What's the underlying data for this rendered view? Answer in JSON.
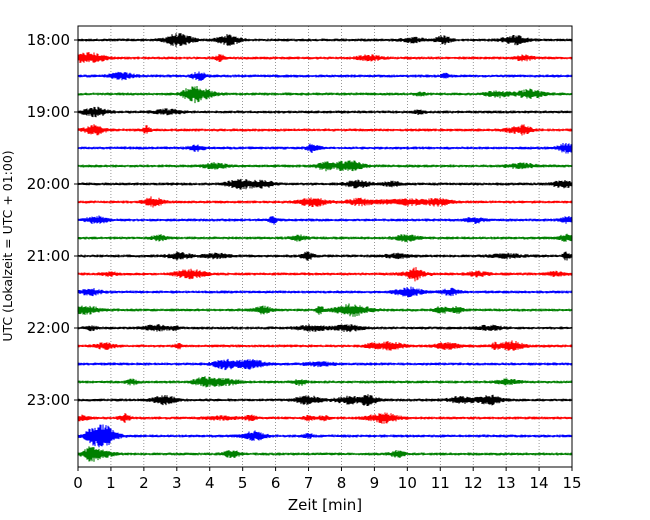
{
  "chart_data": {
    "type": "line",
    "title": "",
    "xlabel": "Zeit  [min]",
    "ylabel": "UTC (Lokalzeit = UTC + 01:00)",
    "xlim": [
      0,
      15
    ],
    "x_ticks": [
      0,
      1,
      2,
      3,
      4,
      5,
      6,
      7,
      8,
      9,
      10,
      11,
      12,
      13,
      14,
      15
    ],
    "x_tick_labels": [
      "0",
      "1",
      "2",
      "3",
      "4",
      "5",
      "6",
      "7",
      "8",
      "9",
      "10",
      "11",
      "12",
      "13",
      "14",
      "15"
    ],
    "y_tick_labels": [
      "18:00",
      "19:00",
      "20:00",
      "21:00",
      "22:00",
      "23:00"
    ],
    "trace_interval_min": 15,
    "start_time": "18:00",
    "vertical_grid": true,
    "legend": "none",
    "trace_colors": [
      "#000000",
      "#ff0000",
      "#0000ff",
      "#008000"
    ],
    "traces": [
      {
        "start": "18:00",
        "color": "#000000"
      },
      {
        "start": "18:15",
        "color": "#ff0000"
      },
      {
        "start": "18:30",
        "color": "#0000ff"
      },
      {
        "start": "18:45",
        "color": "#008000"
      },
      {
        "start": "19:00",
        "color": "#000000"
      },
      {
        "start": "19:15",
        "color": "#ff0000"
      },
      {
        "start": "19:30",
        "color": "#0000ff"
      },
      {
        "start": "19:45",
        "color": "#008000"
      },
      {
        "start": "20:00",
        "color": "#000000"
      },
      {
        "start": "20:15",
        "color": "#ff0000"
      },
      {
        "start": "20:30",
        "color": "#0000ff"
      },
      {
        "start": "20:45",
        "color": "#008000"
      },
      {
        "start": "21:00",
        "color": "#000000"
      },
      {
        "start": "21:15",
        "color": "#ff0000"
      },
      {
        "start": "21:30",
        "color": "#0000ff"
      },
      {
        "start": "21:45",
        "color": "#008000"
      },
      {
        "start": "22:00",
        "color": "#000000"
      },
      {
        "start": "22:15",
        "color": "#ff0000"
      },
      {
        "start": "22:30",
        "color": "#0000ff"
      },
      {
        "start": "22:45",
        "color": "#008000"
      },
      {
        "start": "23:00",
        "color": "#000000"
      },
      {
        "start": "23:15",
        "color": "#ff0000"
      },
      {
        "start": "23:30",
        "color": "#0000ff"
      },
      {
        "start": "23:45",
        "color": "#008000"
      }
    ]
  }
}
